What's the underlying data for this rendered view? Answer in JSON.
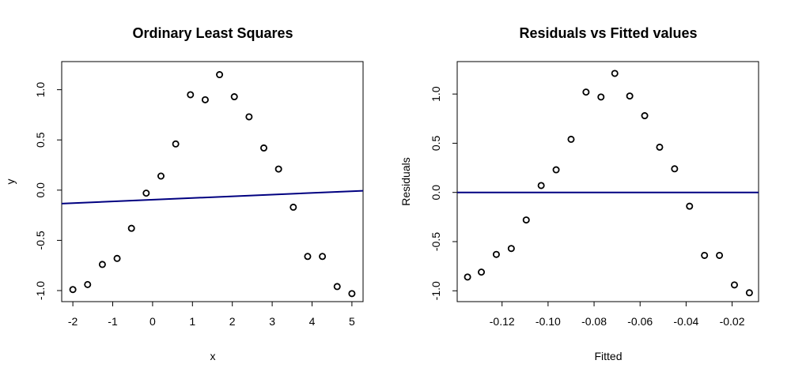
{
  "chart_data": [
    {
      "type": "scatter",
      "title": "Ordinary Least Squares",
      "xlabel": "x",
      "ylabel": "y",
      "xlim": [
        -2.28,
        5.28
      ],
      "ylim": [
        -1.11,
        1.28
      ],
      "xticks": [
        -2,
        -1,
        0,
        1,
        2,
        3,
        4,
        5
      ],
      "xtick_labels": [
        "-2",
        "-1",
        "0",
        "1",
        "2",
        "3",
        "4",
        "5"
      ],
      "yticks": [
        -1.0,
        -0.5,
        0.0,
        0.5,
        1.0
      ],
      "ytick_labels": [
        "-1.0",
        "-0.5",
        "0.0",
        "0.5",
        "1.0"
      ],
      "points": {
        "x": [
          -2.0,
          -1.63,
          -1.26,
          -0.89,
          -0.53,
          -0.16,
          0.21,
          0.58,
          0.95,
          1.32,
          1.68,
          2.05,
          2.42,
          2.79,
          3.16,
          3.53,
          3.89,
          4.26,
          4.63,
          5.0
        ],
        "y": [
          -0.99,
          -0.94,
          -0.74,
          -0.68,
          -0.38,
          -0.03,
          0.14,
          0.46,
          0.95,
          0.9,
          1.15,
          0.93,
          0.73,
          0.42,
          0.21,
          -0.17,
          -0.66,
          -0.66,
          -0.96,
          -1.03
        ]
      },
      "line": {
        "x": [
          -2.28,
          5.28
        ],
        "y": [
          -0.134,
          -0.006
        ],
        "color": "#000080"
      },
      "point_color": "#000000"
    },
    {
      "type": "scatter",
      "title": "Residuals vs Fitted values",
      "xlabel": "Fitted",
      "ylabel": "Residuals",
      "xlim": [
        -0.1395,
        -0.0085
      ],
      "ylim": [
        -1.11,
        1.33
      ],
      "xticks": [
        -0.12,
        -0.1,
        -0.08,
        -0.06,
        -0.04,
        -0.02
      ],
      "xtick_labels": [
        "-0.12",
        "-0.10",
        "-0.08",
        "-0.06",
        "-0.04",
        "-0.02"
      ],
      "yticks": [
        -1.0,
        -0.5,
        0.0,
        0.5,
        1.0
      ],
      "ytick_labels": [
        "-1.0",
        "-0.5",
        "0.0",
        "0.5",
        "1.0"
      ],
      "points": {
        "x": [
          -0.135,
          -0.129,
          -0.1225,
          -0.116,
          -0.1095,
          -0.103,
          -0.0965,
          -0.09,
          -0.0835,
          -0.077,
          -0.071,
          -0.0645,
          -0.058,
          -0.0515,
          -0.045,
          -0.0385,
          -0.032,
          -0.0255,
          -0.019,
          -0.0125
        ],
        "y": [
          -0.86,
          -0.81,
          -0.63,
          -0.57,
          -0.28,
          0.07,
          0.23,
          0.54,
          1.02,
          0.97,
          1.21,
          0.98,
          0.78,
          0.46,
          0.24,
          -0.14,
          -0.64,
          -0.64,
          -0.94,
          -1.02
        ]
      },
      "line": {
        "x": [
          -0.1395,
          -0.0085
        ],
        "y": [
          0.0,
          0.0
        ],
        "color": "#000080"
      },
      "point_color": "#000000"
    }
  ]
}
